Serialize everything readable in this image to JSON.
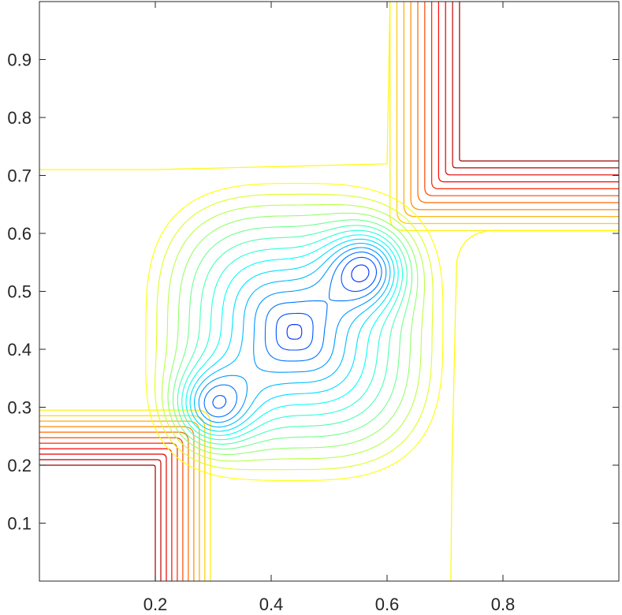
{
  "chart_data": {
    "type": "contour",
    "title": "",
    "xlabel": "",
    "ylabel": "",
    "xlim": [
      0,
      1
    ],
    "ylim": [
      0,
      1
    ],
    "grid": false,
    "legend": "none",
    "colormap": "jet",
    "x_ticks": [
      0.2,
      0.4,
      0.6,
      0.8
    ],
    "x_tick_labels": [
      "0.2",
      "0.4",
      "0.6",
      "0.8"
    ],
    "y_ticks": [
      0.1,
      0.2,
      0.3,
      0.4,
      0.5,
      0.6,
      0.7,
      0.8,
      0.9
    ],
    "y_tick_labels": [
      "0.1",
      "0.2",
      "0.3",
      "0.4",
      "0.5",
      "0.6",
      "0.7",
      "0.8",
      "0.9"
    ],
    "features": {
      "lower_left_corner": {
        "x_range": [
          0.2,
          0.295
        ],
        "y_range": [
          0.2,
          0.295
        ]
      },
      "upper_right_corner": {
        "x_range": [
          0.605,
          0.725
        ],
        "y_range": [
          0.605,
          0.725
        ]
      },
      "minima": [
        {
          "x": 0.3,
          "y": 0.3
        },
        {
          "x": 0.565,
          "y": 0.54
        }
      ],
      "bowl": {
        "center_x": 0.44,
        "center_y": 0.43,
        "radius": 0.25
      }
    }
  }
}
